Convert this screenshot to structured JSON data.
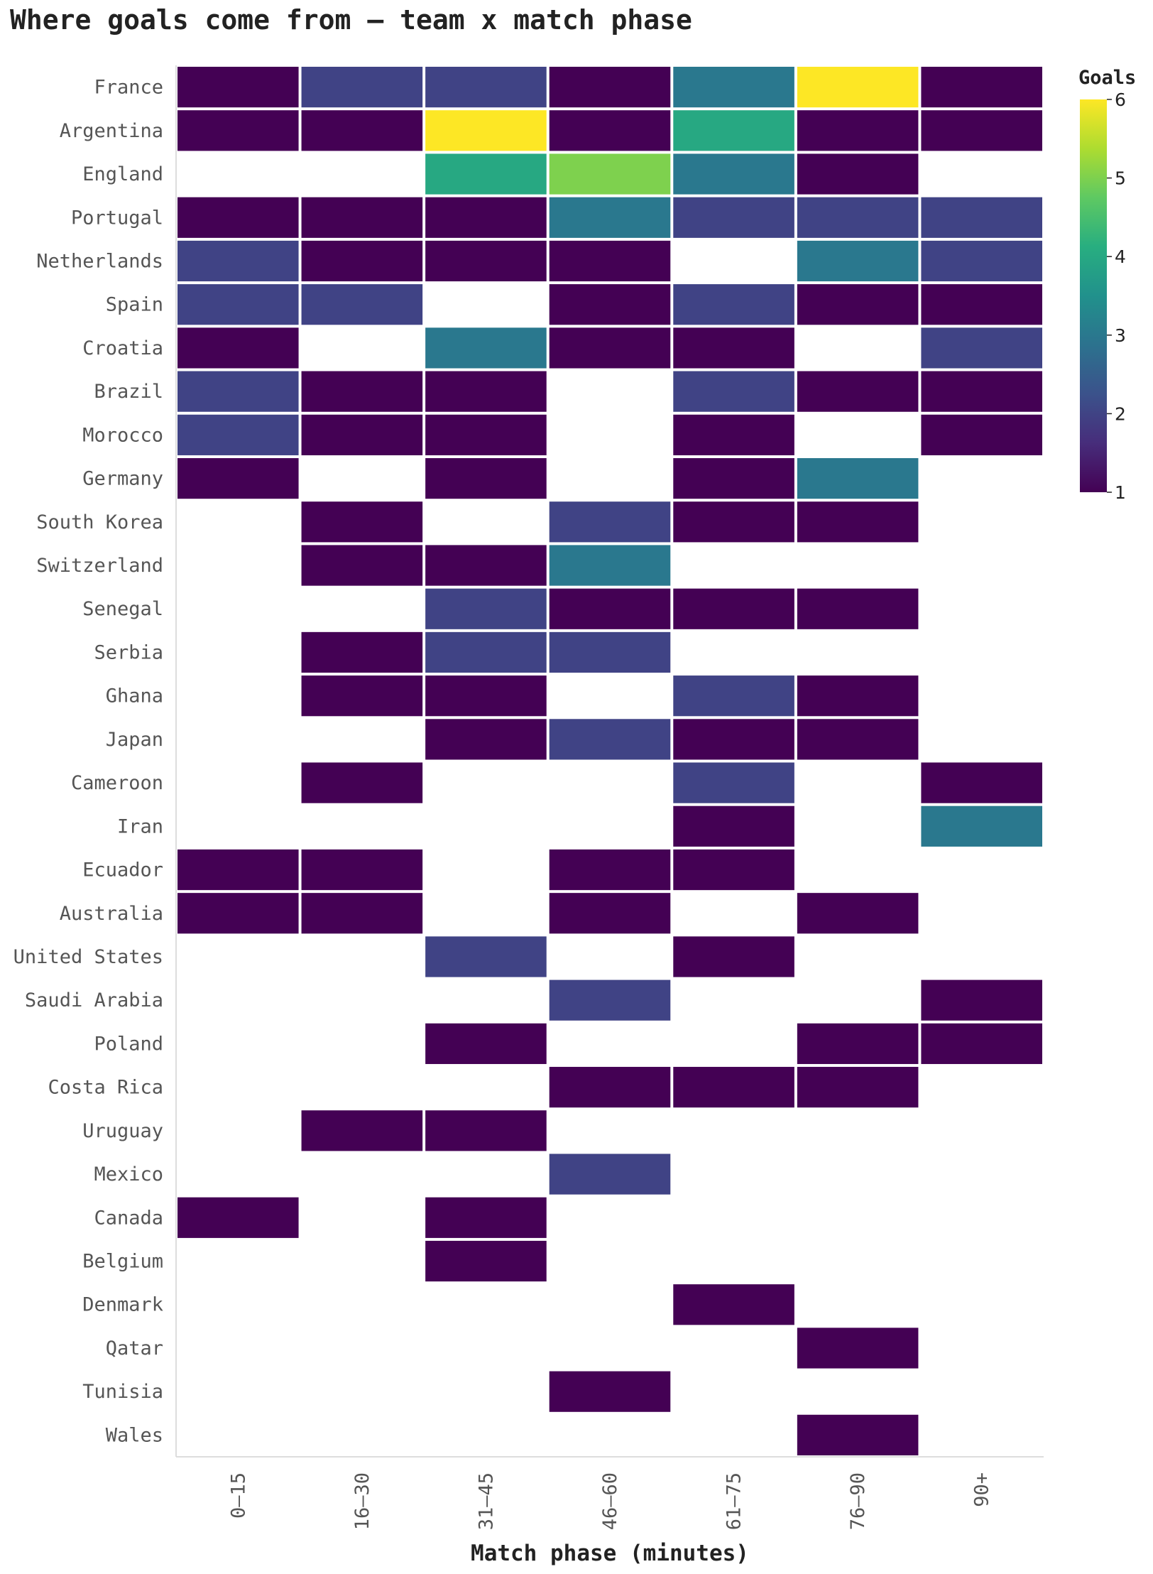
{
  "chart_data": {
    "type": "heatmap",
    "title": "Where goals come from — team x match phase",
    "xlabel": "Match phase (minutes)",
    "ylabel": "",
    "columns": [
      "0–15",
      "16–30",
      "31–45",
      "46–60",
      "61–75",
      "76–90",
      "90+"
    ],
    "rows": [
      "France",
      "Argentina",
      "England",
      "Portugal",
      "Netherlands",
      "Spain",
      "Croatia",
      "Brazil",
      "Morocco",
      "Germany",
      "South Korea",
      "Switzerland",
      "Senegal",
      "Serbia",
      "Ghana",
      "Japan",
      "Cameroon",
      "Iran",
      "Ecuador",
      "Australia",
      "United States",
      "Saudi Arabia",
      "Poland",
      "Costa Rica",
      "Uruguay",
      "Mexico",
      "Canada",
      "Belgium",
      "Denmark",
      "Qatar",
      "Tunisia",
      "Wales"
    ],
    "values": [
      [
        1,
        2,
        2,
        1,
        3,
        6,
        1
      ],
      [
        1,
        1,
        6,
        1,
        4,
        1,
        1
      ],
      [
        null,
        null,
        4,
        5,
        3,
        1,
        null
      ],
      [
        1,
        1,
        1,
        3,
        2,
        2,
        2
      ],
      [
        2,
        1,
        1,
        1,
        null,
        3,
        2
      ],
      [
        2,
        2,
        null,
        1,
        2,
        1,
        1
      ],
      [
        1,
        null,
        3,
        1,
        1,
        null,
        2
      ],
      [
        2,
        1,
        1,
        null,
        2,
        1,
        1
      ],
      [
        2,
        1,
        1,
        null,
        1,
        null,
        1
      ],
      [
        1,
        null,
        1,
        null,
        1,
        3,
        null
      ],
      [
        null,
        1,
        null,
        2,
        1,
        1,
        null
      ],
      [
        null,
        1,
        1,
        3,
        null,
        null,
        null
      ],
      [
        null,
        null,
        2,
        1,
        1,
        1,
        null
      ],
      [
        null,
        1,
        2,
        2,
        null,
        null,
        null
      ],
      [
        null,
        1,
        1,
        null,
        2,
        1,
        null
      ],
      [
        null,
        null,
        1,
        2,
        1,
        1,
        null
      ],
      [
        null,
        1,
        null,
        null,
        2,
        null,
        1
      ],
      [
        null,
        null,
        null,
        null,
        1,
        null,
        3
      ],
      [
        1,
        1,
        null,
        1,
        1,
        null,
        null
      ],
      [
        1,
        1,
        null,
        1,
        null,
        1,
        null
      ],
      [
        null,
        null,
        2,
        null,
        1,
        null,
        null
      ],
      [
        null,
        null,
        null,
        2,
        null,
        null,
        1
      ],
      [
        null,
        null,
        1,
        null,
        null,
        1,
        1
      ],
      [
        null,
        null,
        null,
        1,
        1,
        1,
        null
      ],
      [
        null,
        1,
        1,
        null,
        null,
        null,
        null
      ],
      [
        null,
        null,
        null,
        2,
        null,
        null,
        null
      ],
      [
        1,
        null,
        1,
        null,
        null,
        null,
        null
      ],
      [
        null,
        null,
        1,
        null,
        null,
        null,
        null
      ],
      [
        null,
        null,
        null,
        null,
        1,
        null,
        null
      ],
      [
        null,
        null,
        null,
        null,
        null,
        1,
        null
      ],
      [
        null,
        null,
        null,
        1,
        null,
        null,
        null
      ],
      [
        null,
        null,
        null,
        null,
        null,
        1,
        null
      ]
    ],
    "colorscale": "viridis",
    "legend": {
      "title": "Goals",
      "min": 1,
      "max": 6,
      "ticks": [
        1,
        2,
        3,
        4,
        5,
        6
      ],
      "placement": "right"
    },
    "grid": false
  }
}
